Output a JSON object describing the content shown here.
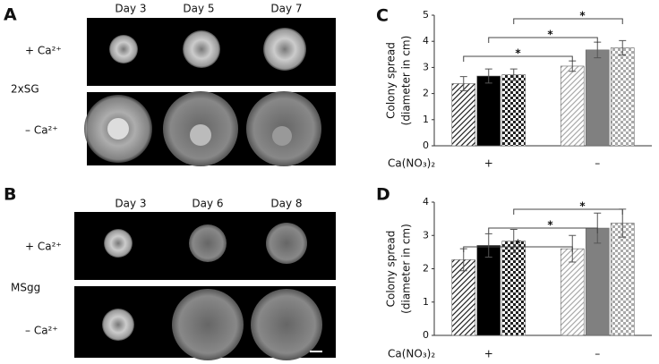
{
  "panels": {
    "a": "A",
    "b": "B"
  },
  "photos": [
    {
      "days": [
        "Day 3",
        "Day 5",
        "Day 7"
      ],
      "medium": "2xSG",
      "rows": [
        "+ Ca²⁺",
        "– Ca²⁺"
      ]
    },
    {
      "days": [
        "Day 3",
        "Day 6",
        "Day 8"
      ],
      "medium": "MSgg",
      "rows": [
        "+ Ca²⁺",
        "– Ca²⁺"
      ]
    }
  ],
  "chart_data": [
    {
      "type": "bar",
      "panel": "C",
      "ylabel": [
        "Colony spread",
        "(diameter in cm)"
      ],
      "xlabel": "Ca(NO₃)₂",
      "categories": [
        "+",
        "–"
      ],
      "ylim": [
        0,
        5
      ],
      "yticks": [
        0,
        1,
        2,
        3,
        4,
        5
      ],
      "significance": [
        "*",
        "*",
        "*"
      ],
      "series": [
        {
          "pattern": "hatch",
          "colors": [
            "#222222",
            "#aaaaaa"
          ],
          "values": [
            2.38,
            3.05
          ],
          "errors": [
            0.27,
            0.2
          ]
        },
        {
          "pattern": "solid",
          "colors": [
            "#000000",
            "#808080"
          ],
          "values": [
            2.67,
            3.67
          ],
          "errors": [
            0.27,
            0.3
          ]
        },
        {
          "pattern": "check",
          "colors": [
            "#222222",
            "#aaaaaa"
          ],
          "values": [
            2.72,
            3.75
          ],
          "errors": [
            0.22,
            0.28
          ]
        }
      ]
    },
    {
      "type": "bar",
      "panel": "D",
      "ylabel": [
        "Colony spread",
        "(diameter in cm)"
      ],
      "xlabel": "Ca(NO₃)₂",
      "categories": [
        "+",
        "–"
      ],
      "ylim": [
        0,
        4
      ],
      "yticks": [
        0,
        1,
        2,
        3,
        4
      ],
      "significance": [
        "*",
        "*",
        "*"
      ],
      "series": [
        {
          "pattern": "hatch",
          "colors": [
            "#222222",
            "#aaaaaa"
          ],
          "values": [
            2.27,
            2.6
          ],
          "errors": [
            0.33,
            0.4
          ]
        },
        {
          "pattern": "solid",
          "colors": [
            "#000000",
            "#808080"
          ],
          "values": [
            2.7,
            3.22
          ],
          "errors": [
            0.35,
            0.45
          ]
        },
        {
          "pattern": "check",
          "colors": [
            "#222222",
            "#aaaaaa"
          ],
          "values": [
            2.83,
            3.37
          ],
          "errors": [
            0.35,
            0.42
          ]
        }
      ]
    }
  ]
}
